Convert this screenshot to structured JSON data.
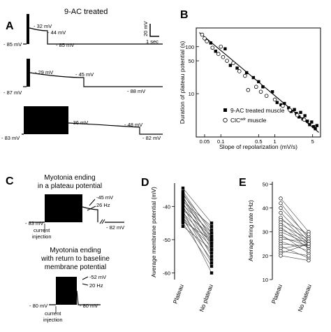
{
  "panels": {
    "A": {
      "letter": "A",
      "title": "9-AC treated",
      "scale_v": "20 mV",
      "scale_t": "1 sec",
      "traces": [
        {
          "left": "- 85 mV",
          "peak1": "- 32 mV",
          "peak2": "- 44 mV",
          "right": "- 85 mV"
        },
        {
          "left": "- 87 mV",
          "peak1": "- 29 mV",
          "peak2": "- 45 mV",
          "right": "- 88 mV"
        },
        {
          "left": "- 83 mV",
          "peak1": "- 36 mV",
          "peak2": "- 48 mV",
          "right": "- 82 mV"
        }
      ]
    },
    "B": {
      "letter": "B",
      "legend": [
        {
          "label": "9-AC treated muscle",
          "marker": "filled-square"
        },
        {
          "label_base": "ClC",
          "label_sup": "adr",
          "label_rest": " muscle",
          "marker": "open-circle"
        }
      ]
    },
    "C": {
      "letter": "C",
      "top": {
        "title_lines": [
          "Myotonia ending",
          "in a plateau potential"
        ],
        "left": "- 83 mV",
        "plateau": "-45 mV",
        "freq": "26 Hz",
        "right": "- 82 mV",
        "inject_lines": [
          "current",
          "injection"
        ]
      },
      "bottom": {
        "title_lines": [
          "Myotonia ending",
          "with return to baseline",
          "membrane potential"
        ],
        "left": "- 80 mV",
        "plateau": "-52 mV",
        "freq": "20 Hz",
        "right": "- 80 mV",
        "inject_lines": [
          "current",
          "injection"
        ]
      }
    },
    "D": {
      "letter": "D"
    },
    "E": {
      "letter": "E"
    }
  },
  "chart_data": [
    {
      "panel": "B",
      "type": "scatter",
      "xlabel": "Slope of repolarization (mV/s)",
      "ylabel": "Duration of plateau potential (s)",
      "x_scale": "log",
      "y_scale": "log",
      "xlim": [
        0.035,
        7
      ],
      "ylim": [
        1.2,
        250
      ],
      "xticks": [
        0.05,
        0.1,
        0.5,
        1,
        5
      ],
      "xtick_labels": [
        "0.05",
        "0.1",
        "0.5",
        "1",
        "5"
      ],
      "yticks": [
        10,
        50,
        100
      ],
      "ytick_labels": [
        "10",
        "50",
        "100"
      ],
      "fit_line": {
        "x": [
          0.04,
          6.5
        ],
        "y": [
          200,
          1.5
        ]
      },
      "series": [
        {
          "name": "9-AC treated muscle",
          "marker": "filled-square",
          "points": [
            {
              "x": 0.065,
              "y": 120
            },
            {
              "x": 0.08,
              "y": 80
            },
            {
              "x": 0.12,
              "y": 90
            },
            {
              "x": 0.15,
              "y": 40
            },
            {
              "x": 0.2,
              "y": 35
            },
            {
              "x": 0.3,
              "y": 28
            },
            {
              "x": 0.4,
              "y": 22
            },
            {
              "x": 0.5,
              "y": 18
            },
            {
              "x": 0.6,
              "y": 14
            },
            {
              "x": 0.9,
              "y": 11
            },
            {
              "x": 1.1,
              "y": 6.5
            },
            {
              "x": 1.3,
              "y": 5.8
            },
            {
              "x": 1.5,
              "y": 6.2
            },
            {
              "x": 1.8,
              "y": 5
            },
            {
              "x": 2.0,
              "y": 4.2
            },
            {
              "x": 2.3,
              "y": 4.6
            },
            {
              "x": 2.5,
              "y": 3.8
            },
            {
              "x": 2.8,
              "y": 3.2
            },
            {
              "x": 3.0,
              "y": 4.0
            },
            {
              "x": 3.3,
              "y": 2.9
            },
            {
              "x": 3.6,
              "y": 3.4
            },
            {
              "x": 4.0,
              "y": 2.6
            },
            {
              "x": 4.4,
              "y": 2.2
            },
            {
              "x": 4.8,
              "y": 2.5
            },
            {
              "x": 5.2,
              "y": 2.0
            },
            {
              "x": 5.6,
              "y": 1.8
            },
            {
              "x": 6.0,
              "y": 2.1
            }
          ]
        },
        {
          "name": "ClC^adr muscle",
          "marker": "open-circle",
          "points": [
            {
              "x": 0.045,
              "y": 180
            },
            {
              "x": 0.05,
              "y": 150
            },
            {
              "x": 0.055,
              "y": 130
            },
            {
              "x": 0.07,
              "y": 95
            },
            {
              "x": 0.09,
              "y": 70
            },
            {
              "x": 0.1,
              "y": 100
            },
            {
              "x": 0.11,
              "y": 60
            },
            {
              "x": 0.13,
              "y": 50
            },
            {
              "x": 0.17,
              "y": 45
            },
            {
              "x": 0.22,
              "y": 30
            },
            {
              "x": 0.28,
              "y": 24
            },
            {
              "x": 0.32,
              "y": 12
            },
            {
              "x": 0.45,
              "y": 14
            },
            {
              "x": 0.55,
              "y": 11
            },
            {
              "x": 0.7,
              "y": 9
            },
            {
              "x": 1.0,
              "y": 7.5
            },
            {
              "x": 1.4,
              "y": 5.5
            },
            {
              "x": 1.9,
              "y": 4.5
            },
            {
              "x": 2.6,
              "y": 3.5
            },
            {
              "x": 3.5,
              "y": 2.8
            }
          ]
        }
      ]
    },
    {
      "panel": "D",
      "type": "line",
      "ylabel": "Average membrane potential (mV)",
      "categories": [
        "Plateau",
        "No plateau"
      ],
      "ylim": [
        -62,
        -33
      ],
      "yticks": [
        -40,
        -50,
        -60
      ],
      "ytick_labels": [
        "-40",
        "-50",
        "-60"
      ],
      "marker": "filled-square",
      "pairs": [
        [
          -34.5,
          -45
        ],
        [
          -35.5,
          -48
        ],
        [
          -36,
          -50
        ],
        [
          -36.5,
          -47
        ],
        [
          -37,
          -52
        ],
        [
          -37.5,
          -49
        ],
        [
          -38,
          -51
        ],
        [
          -38.5,
          -46
        ],
        [
          -39,
          -53
        ],
        [
          -39.5,
          -48
        ],
        [
          -40,
          -55
        ],
        [
          -40.5,
          -50
        ],
        [
          -41,
          -49
        ],
        [
          -41.5,
          -57
        ],
        [
          -42,
          -51
        ],
        [
          -42.5,
          -54
        ],
        [
          -43,
          -60
        ],
        [
          -43.5,
          -52
        ],
        [
          -44,
          -56
        ],
        [
          -44.5,
          -50
        ],
        [
          -45,
          -58
        ],
        [
          -46,
          -53
        ]
      ]
    },
    {
      "panel": "E",
      "type": "line",
      "ylabel": "Average firing rate (Hz)",
      "categories": [
        "Plateau",
        "No plateau"
      ],
      "ylim": [
        10,
        51
      ],
      "yticks": [
        10,
        20,
        30,
        40,
        50
      ],
      "ytick_labels": [
        "10",
        "20",
        "30",
        "40",
        "50"
      ],
      "marker": "open-circle",
      "pairs": [
        [
          44,
          30
        ],
        [
          42,
          27
        ],
        [
          40,
          28
        ],
        [
          38,
          26
        ],
        [
          36,
          25
        ],
        [
          35,
          29
        ],
        [
          34,
          24
        ],
        [
          33,
          27
        ],
        [
          32,
          23
        ],
        [
          31,
          26
        ],
        [
          30,
          25
        ],
        [
          29,
          21
        ],
        [
          28,
          24
        ],
        [
          27,
          26
        ],
        [
          26,
          22
        ],
        [
          25,
          24
        ],
        [
          24,
          19
        ],
        [
          23,
          25
        ],
        [
          22,
          20
        ],
        [
          21,
          25
        ],
        [
          20,
          18
        ]
      ]
    }
  ]
}
